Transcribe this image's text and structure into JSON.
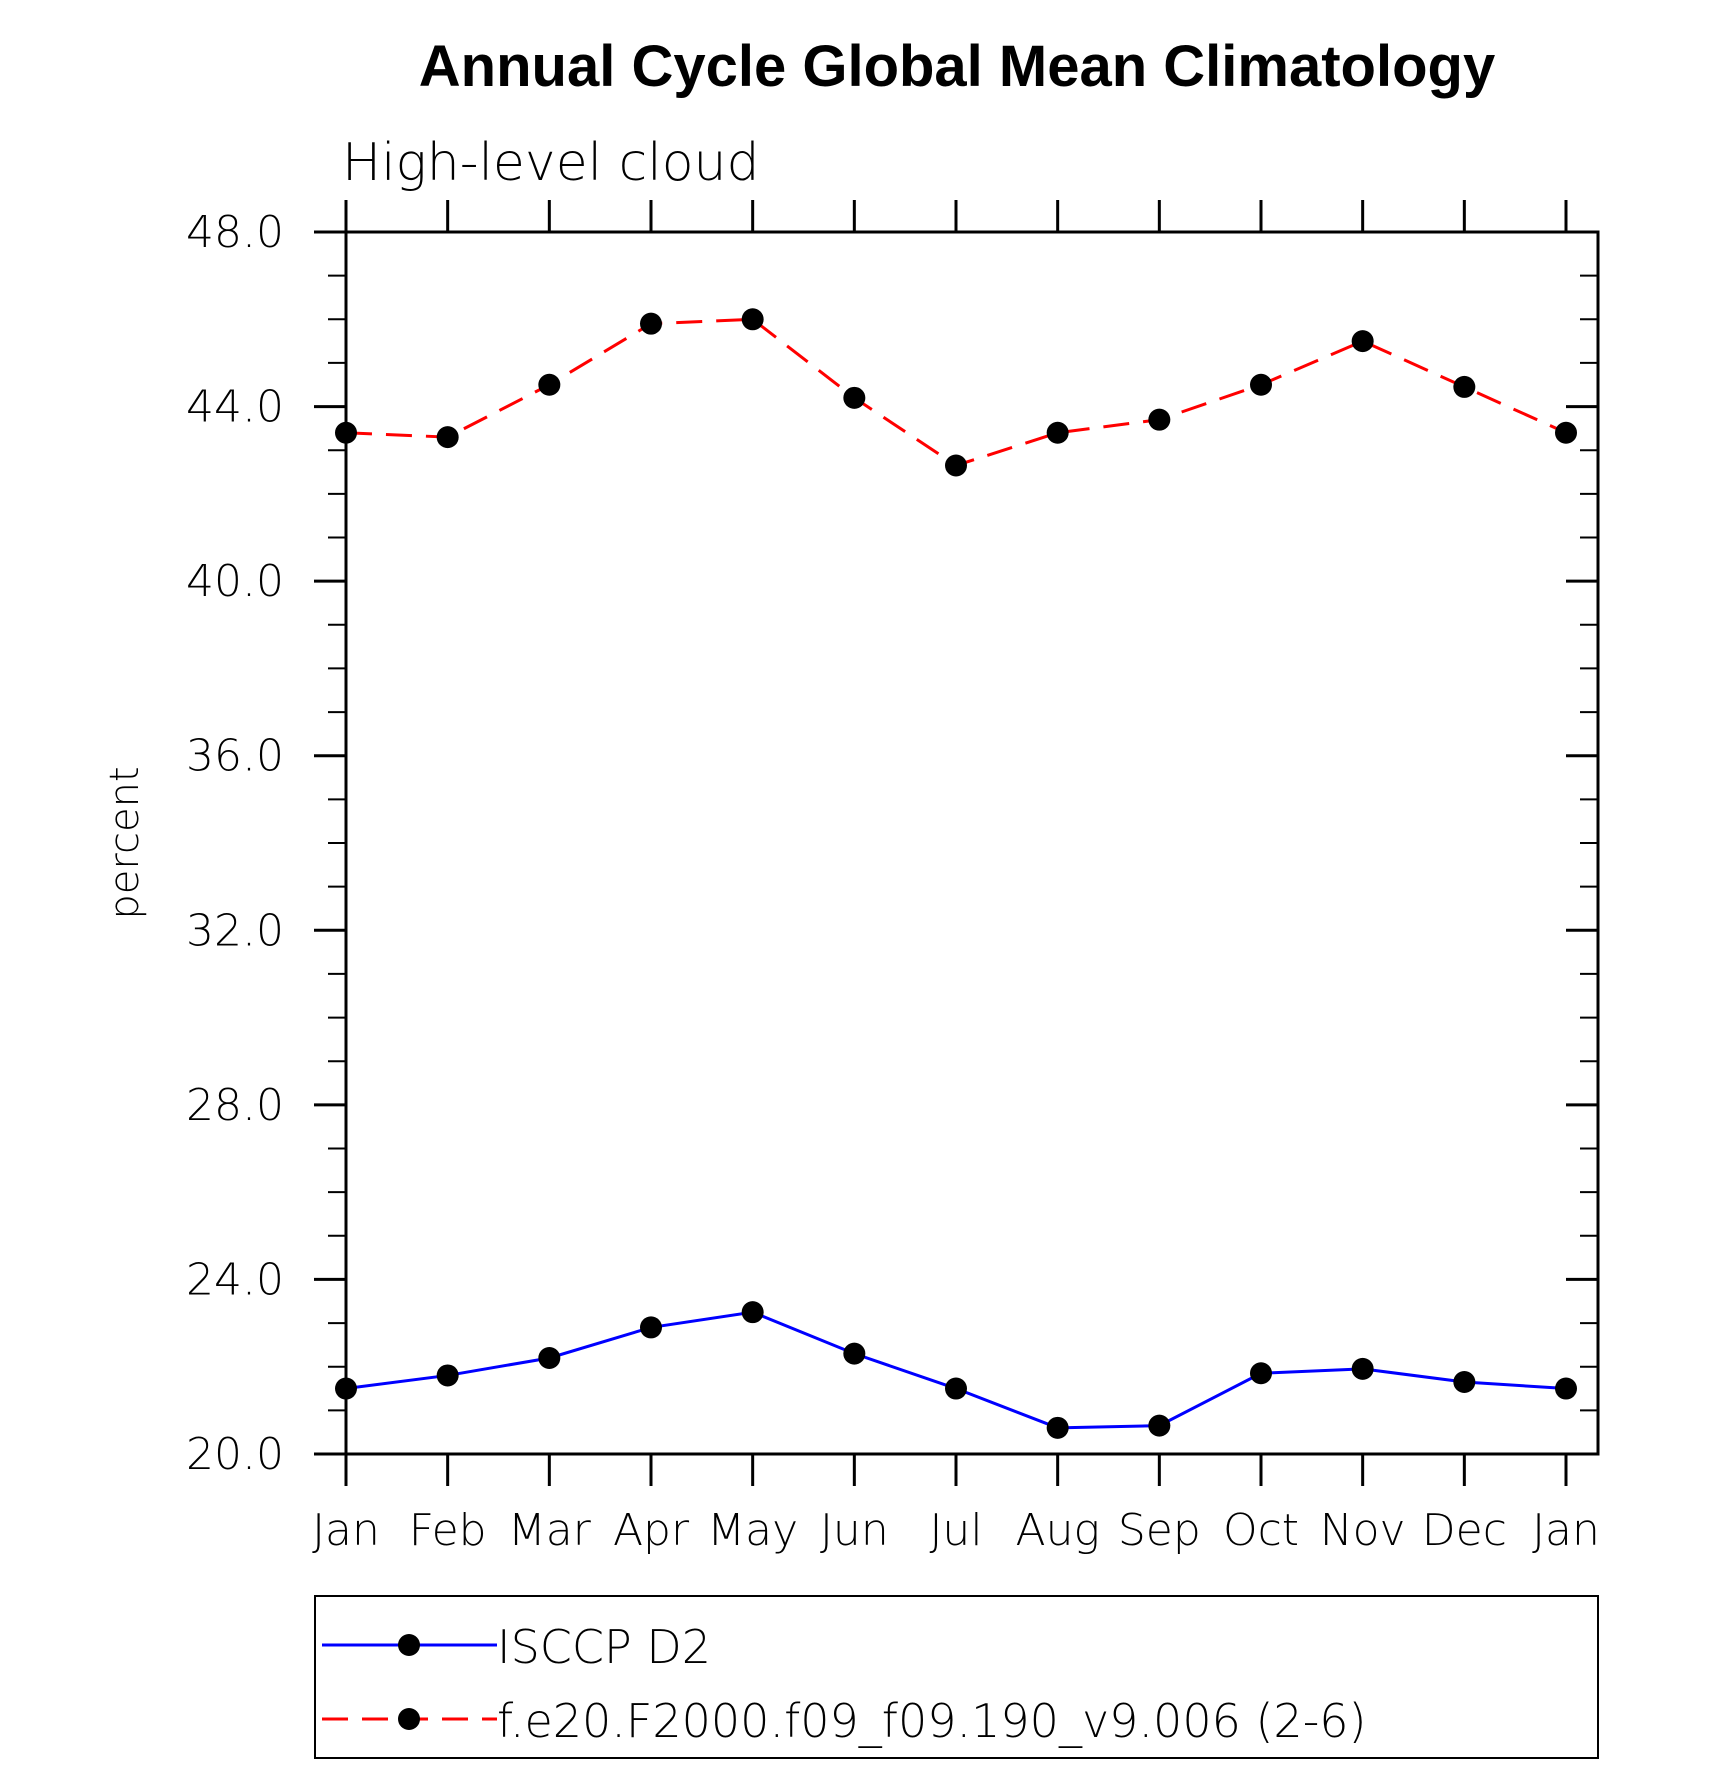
{
  "chart_data": {
    "type": "line",
    "title": "Annual Cycle Global Mean Climatology",
    "subtitle": "High-level cloud",
    "ylabel": "percent",
    "xlabel": "",
    "ylim": [
      20.0,
      48.0
    ],
    "yticks": [
      "20.0",
      "24.0",
      "28.0",
      "32.0",
      "36.0",
      "40.0",
      "44.0",
      "48.0"
    ],
    "categories": [
      "Jan",
      "Feb",
      "Mar",
      "Apr",
      "May",
      "Jun",
      "Jul",
      "Aug",
      "Sep",
      "Oct",
      "Nov",
      "Dec",
      "Jan"
    ],
    "grid": false,
    "legend_position": "bottom",
    "series": [
      {
        "name": "ISCCP D2",
        "color": "#0000ff",
        "dash": "solid",
        "marker": "circle",
        "values": [
          21.5,
          21.8,
          22.2,
          22.9,
          23.25,
          22.3,
          21.5,
          20.6,
          20.65,
          21.85,
          21.95,
          21.65,
          21.5
        ]
      },
      {
        "name": "f.e20.F2000.f09_f09.190_v9.006 (2-6)",
        "color": "#ff0000",
        "dash": "dashed",
        "marker": "circle",
        "values": [
          43.4,
          43.3,
          44.5,
          45.9,
          46.0,
          44.2,
          42.65,
          43.4,
          43.7,
          44.5,
          45.5,
          44.45,
          43.4
        ]
      }
    ]
  }
}
